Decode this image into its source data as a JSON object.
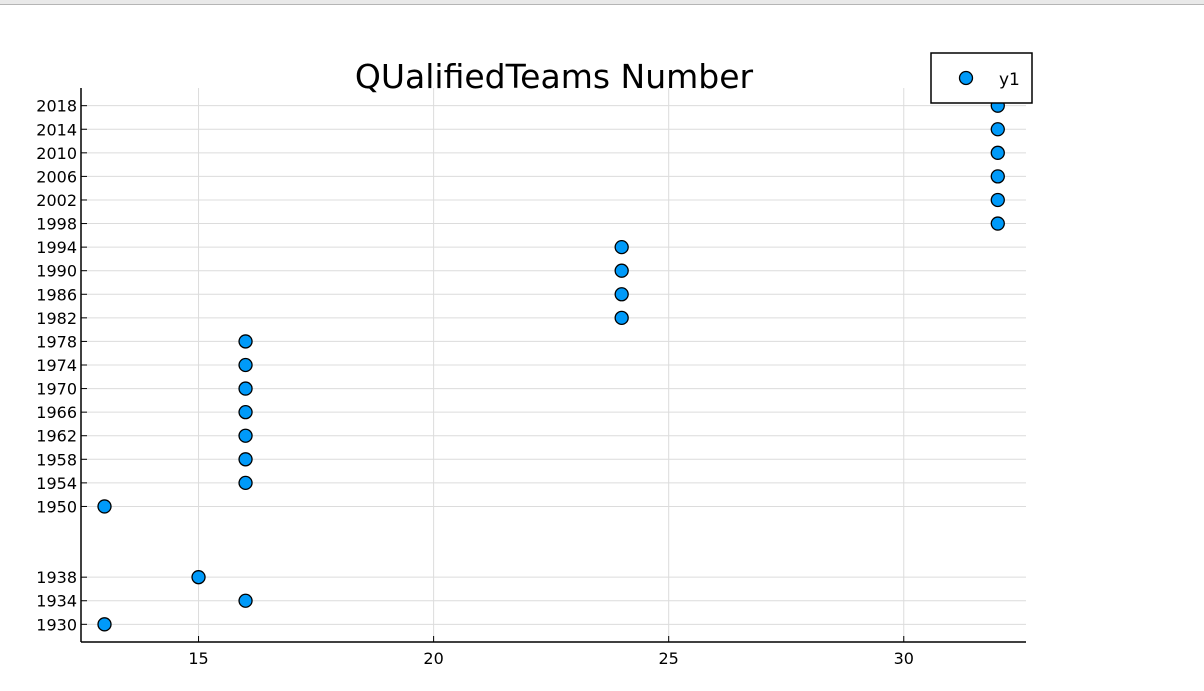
{
  "chart_data": {
    "type": "scatter",
    "title": "QUalifiedTeams Number",
    "xlabel": "",
    "ylabel": "",
    "xlim": [
      12.5,
      32.6
    ],
    "ylim": [
      1927,
      2021
    ],
    "grid": true,
    "legend_position": "top-right",
    "x_ticks": [
      15,
      20,
      25,
      30
    ],
    "y_ticks": [
      1930,
      1934,
      1938,
      1950,
      1954,
      1958,
      1962,
      1966,
      1970,
      1974,
      1978,
      1982,
      1986,
      1990,
      1994,
      1998,
      2002,
      2006,
      2010,
      2014,
      2018
    ],
    "series": [
      {
        "name": "y1",
        "color": "#009af9",
        "points": [
          {
            "x": 13,
            "y": 1930
          },
          {
            "x": 16,
            "y": 1934
          },
          {
            "x": 15,
            "y": 1938
          },
          {
            "x": 13,
            "y": 1950
          },
          {
            "x": 16,
            "y": 1954
          },
          {
            "x": 16,
            "y": 1958
          },
          {
            "x": 16,
            "y": 1962
          },
          {
            "x": 16,
            "y": 1966
          },
          {
            "x": 16,
            "y": 1970
          },
          {
            "x": 16,
            "y": 1974
          },
          {
            "x": 16,
            "y": 1978
          },
          {
            "x": 24,
            "y": 1982
          },
          {
            "x": 24,
            "y": 1986
          },
          {
            "x": 24,
            "y": 1990
          },
          {
            "x": 24,
            "y": 1994
          },
          {
            "x": 32,
            "y": 1998
          },
          {
            "x": 32,
            "y": 2002
          },
          {
            "x": 32,
            "y": 2006
          },
          {
            "x": 32,
            "y": 2010
          },
          {
            "x": 32,
            "y": 2014
          },
          {
            "x": 32,
            "y": 2018
          }
        ]
      }
    ]
  }
}
